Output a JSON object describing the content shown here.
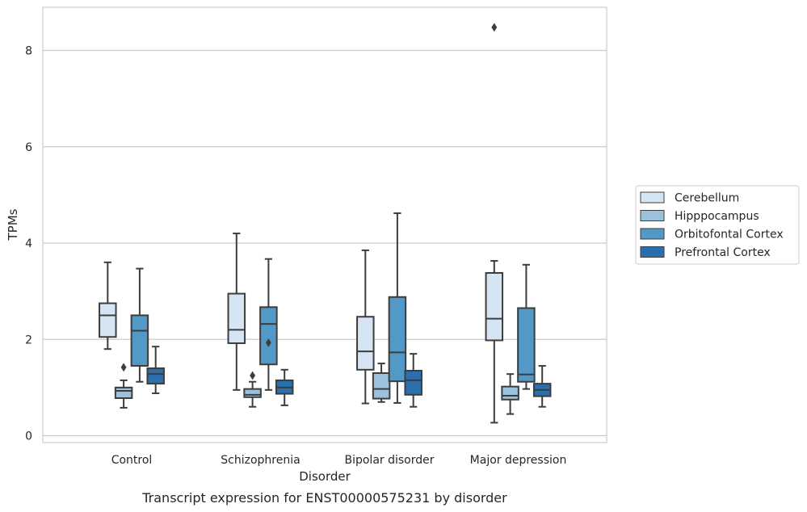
{
  "chart_data": {
    "type": "box",
    "title": "",
    "caption": "Transcript expression for ENST00000575231 by disorder",
    "xlabel": "Disorder",
    "ylabel": "TPMs",
    "ylim": [
      -0.15,
      8.9
    ],
    "yticks": [
      0,
      2,
      4,
      6,
      8
    ],
    "grid": "horizontal",
    "legend_position": "right",
    "categories": [
      "Control",
      "Schizophrenia",
      "Bipolar disorder",
      "Major depression"
    ],
    "series": [
      {
        "name": "Cerebellum",
        "color": "#d6e5f3",
        "boxes": [
          {
            "whisker_low": 1.8,
            "q1": 2.05,
            "median": 2.5,
            "q3": 2.75,
            "whisker_high": 3.6,
            "outliers": []
          },
          {
            "whisker_low": 0.95,
            "q1": 1.92,
            "median": 2.2,
            "q3": 2.95,
            "whisker_high": 4.2,
            "outliers": []
          },
          {
            "whisker_low": 0.67,
            "q1": 1.37,
            "median": 1.75,
            "q3": 2.47,
            "whisker_high": 3.85,
            "outliers": []
          },
          {
            "whisker_low": 0.27,
            "q1": 1.98,
            "median": 2.43,
            "q3": 3.38,
            "whisker_high": 3.63,
            "outliers": [
              8.48
            ]
          }
        ]
      },
      {
        "name": "Hipppocampus",
        "color": "#9ac1dd",
        "boxes": [
          {
            "whisker_low": 0.58,
            "q1": 0.78,
            "median": 0.93,
            "q3": 1.0,
            "whisker_high": 1.15,
            "outliers": [
              1.42
            ]
          },
          {
            "whisker_low": 0.6,
            "q1": 0.8,
            "median": 0.85,
            "q3": 0.97,
            "whisker_high": 1.12,
            "outliers": [
              1.25
            ]
          },
          {
            "whisker_low": 0.7,
            "q1": 0.77,
            "median": 0.97,
            "q3": 1.3,
            "whisker_high": 1.5,
            "outliers": []
          },
          {
            "whisker_low": 0.45,
            "q1": 0.75,
            "median": 0.83,
            "q3": 1.02,
            "whisker_high": 1.28,
            "outliers": []
          }
        ]
      },
      {
        "name": "Orbitofontal Cortex",
        "color": "#5399c7",
        "boxes": [
          {
            "whisker_low": 1.12,
            "q1": 1.45,
            "median": 2.18,
            "q3": 2.5,
            "whisker_high": 3.47,
            "outliers": []
          },
          {
            "whisker_low": 0.95,
            "q1": 1.48,
            "median": 2.32,
            "q3": 2.67,
            "whisker_high": 3.67,
            "outliers": [
              1.93
            ]
          },
          {
            "whisker_low": 0.68,
            "q1": 1.13,
            "median": 1.73,
            "q3": 2.88,
            "whisker_high": 4.62,
            "outliers": []
          },
          {
            "whisker_low": 0.97,
            "q1": 1.12,
            "median": 1.27,
            "q3": 2.65,
            "whisker_high": 3.55,
            "outliers": []
          }
        ]
      },
      {
        "name": "Prefrontal Cortex",
        "color": "#2c6fae",
        "boxes": [
          {
            "whisker_low": 0.88,
            "q1": 1.08,
            "median": 1.28,
            "q3": 1.4,
            "whisker_high": 1.85,
            "outliers": []
          },
          {
            "whisker_low": 0.63,
            "q1": 0.87,
            "median": 1.0,
            "q3": 1.15,
            "whisker_high": 1.37,
            "outliers": []
          },
          {
            "whisker_low": 0.6,
            "q1": 0.85,
            "median": 1.15,
            "q3": 1.35,
            "whisker_high": 1.7,
            "outliers": []
          },
          {
            "whisker_low": 0.6,
            "q1": 0.82,
            "median": 0.95,
            "q3": 1.08,
            "whisker_high": 1.45,
            "outliers": []
          }
        ]
      }
    ],
    "style": {
      "grid_color": "#cccccc",
      "line_color": "#3d3d3d",
      "frame_color": "#cccccc"
    }
  }
}
